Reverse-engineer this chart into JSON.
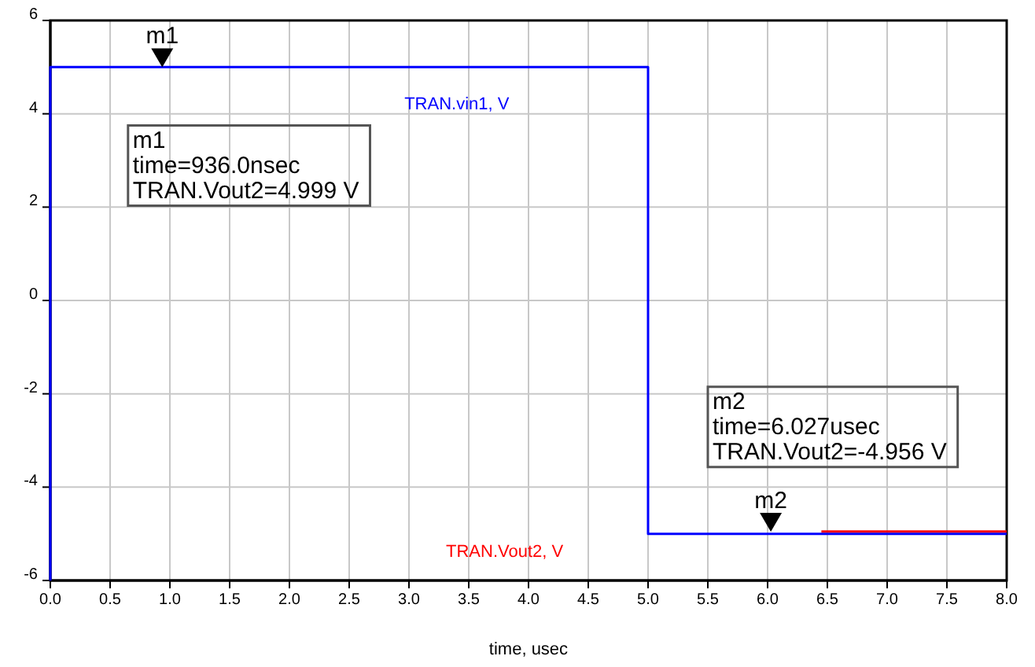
{
  "chart_data": {
    "type": "line",
    "xlabel": "time, usec",
    "xlim": [
      0,
      8
    ],
    "xticks": [
      {
        "value": 0,
        "label": "0.0"
      },
      {
        "value": 0.5,
        "label": "0.5"
      },
      {
        "value": 1,
        "label": "1.0"
      },
      {
        "value": 1.5,
        "label": "1.5"
      },
      {
        "value": 2,
        "label": "2.0"
      },
      {
        "value": 2.5,
        "label": "2.5"
      },
      {
        "value": 3,
        "label": "3.0"
      },
      {
        "value": 3.5,
        "label": "3.5"
      },
      {
        "value": 4,
        "label": "4.0"
      },
      {
        "value": 4.5,
        "label": "4.5"
      },
      {
        "value": 5,
        "label": "5.0"
      },
      {
        "value": 5.5,
        "label": "5.5"
      },
      {
        "value": 6,
        "label": "6.0"
      },
      {
        "value": 6.5,
        "label": "6.5"
      },
      {
        "value": 7,
        "label": "7.0"
      },
      {
        "value": 7.5,
        "label": "7.5"
      },
      {
        "value": 8,
        "label": "8.0"
      }
    ],
    "ylim": [
      -6,
      6
    ],
    "yticks": [
      -6,
      -4,
      -2,
      0,
      2,
      4,
      6
    ],
    "grid": true,
    "line_style": "solid",
    "series": [
      {
        "name": "TRAN.Vout2, V",
        "color": "#ff0000",
        "x": [
          6.45,
          8
        ],
        "values": [
          -4.95,
          -4.95
        ]
      },
      {
        "name": "TRAN.vin1, V",
        "color": "#0000ff",
        "x": [
          0,
          0,
          5,
          5,
          8
        ],
        "values": [
          -6,
          5,
          5,
          -5,
          -5
        ]
      }
    ],
    "annotations": [
      {
        "text": "m1",
        "x": 0.936,
        "y": 4.999
      },
      {
        "text": "m2",
        "x": 6.027,
        "y": -4.956
      },
      "m1\ntime=936.0nsec\nTRAN.Vout2=4.999 V",
      "m2\ntime=6.027usec\nTRAN.Vout2=-4.956 V"
    ]
  }
}
